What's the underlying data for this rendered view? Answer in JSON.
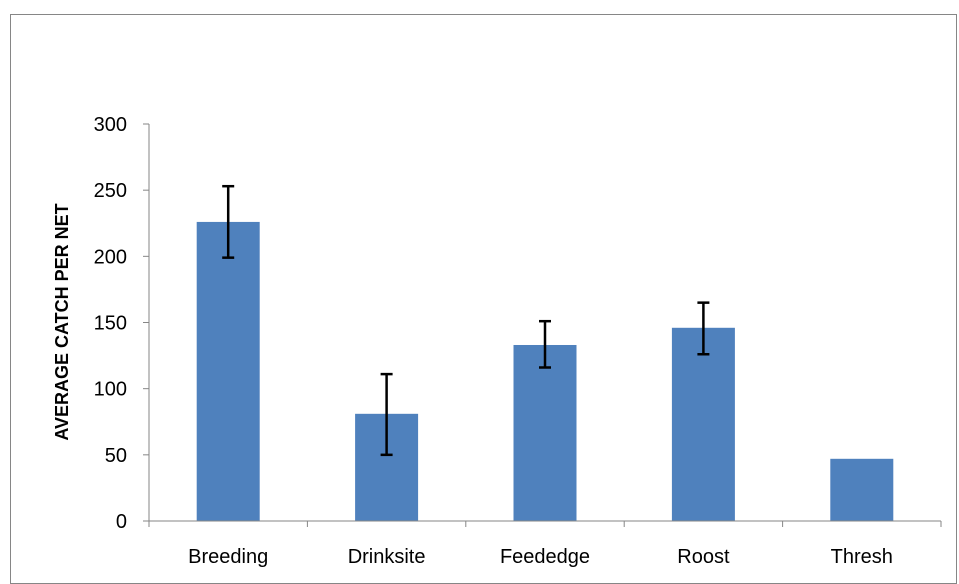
{
  "chart_data": {
    "type": "bar",
    "title": "",
    "xlabel": "",
    "ylabel": "AVERAGE CATCH PER NET",
    "categories": [
      "Breeding",
      "Drinksite",
      "Feededge",
      "Roost",
      "Thresh"
    ],
    "values": [
      226,
      81,
      133,
      146,
      47
    ],
    "error_low": [
      199,
      50,
      116,
      126,
      null
    ],
    "error_high": [
      253,
      111,
      151,
      165,
      null
    ],
    "ylim": [
      0,
      300
    ],
    "yticks": [
      0,
      50,
      100,
      150,
      200,
      250,
      300
    ],
    "bar_color": "#4F81BD",
    "error_bar_color": "#000000",
    "grid": false,
    "legend": "none"
  }
}
